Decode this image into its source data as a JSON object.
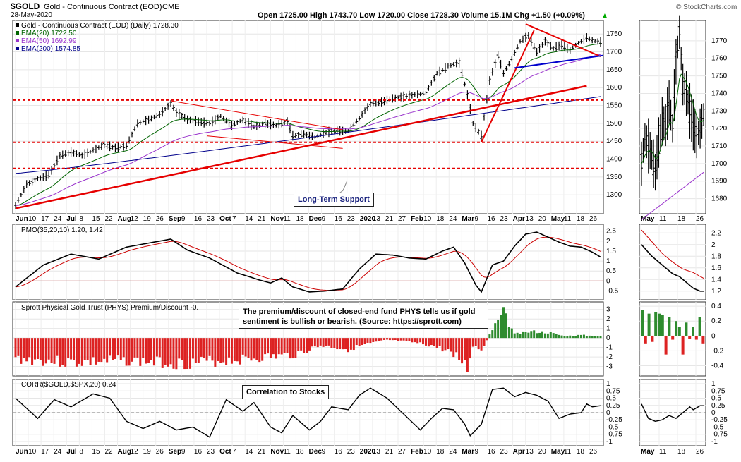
{
  "header": {
    "symbol": "$GOLD",
    "name": "Gold - Continuous Contract (EOD)",
    "exchange": "CME",
    "date": "28-May-2020",
    "ohlc": "Open 1725.00  High 1743.70  Low 1720.00  Close 1728.30  Volume 15.1M  Chg +1.50 (+0.09%)",
    "ohlc_tail": "▲",
    "credit": "© StockCharts.com"
  },
  "colors": {
    "price": "#000000",
    "ema20": "#006400",
    "ema50": "#9932cc",
    "ema200": "#00008b",
    "trend": "#e60000",
    "blue_trend": "#0000cc",
    "bar_positive": "#2e8b2e",
    "bar_negative": "#dd2222",
    "pmo_signal": "#cc0000"
  },
  "annotations": {
    "support": "Long-Term Support",
    "phys_note": "The premium/discount of closed-end fund PHYS tells us if gold sentiment is bullish or bearish. (Source: https://sprott.com)",
    "corr_note": "Correlation to Stocks"
  },
  "x_labels_main": [
    "Jun",
    "10",
    "17",
    "24",
    "Jul",
    "8",
    "15",
    "22",
    "Aug",
    "12",
    "19",
    "26",
    "Sep",
    "9",
    "16",
    "23",
    "Oct",
    "7",
    "14",
    "21",
    "Nov",
    "11",
    "18",
    "Dec",
    "9",
    "16",
    "23",
    "2020",
    "13",
    "21",
    "27",
    "Feb",
    "10",
    "18",
    "24",
    "Mar",
    "9",
    "16",
    "23",
    "Apr",
    "13",
    "20",
    "May",
    "11",
    "18",
    "26"
  ],
  "x_labels_side": [
    "May",
    "11",
    "18",
    "26"
  ],
  "chart_data": [
    {
      "type": "line",
      "name": "price",
      "legend": [
        "Gold - Continuous Contract (EOD) (Daily) 1728.30",
        "EMA(20) 1722.50",
        "EMA(50) 1692.99",
        "EMA(200) 1574.85"
      ],
      "y_ticks": [
        1300,
        1350,
        1400,
        1450,
        1500,
        1550,
        1600,
        1650,
        1700,
        1750
      ],
      "ylim": [
        1255,
        1780
      ],
      "knots": [
        [
          0,
          1270
        ],
        [
          4,
          1330
        ],
        [
          8,
          1345
        ],
        [
          12,
          1355
        ],
        [
          16,
          1410
        ],
        [
          20,
          1420
        ],
        [
          24,
          1410
        ],
        [
          28,
          1425
        ],
        [
          32,
          1440
        ],
        [
          36,
          1432
        ],
        [
          40,
          1438
        ],
        [
          44,
          1500
        ],
        [
          48,
          1510
        ],
        [
          52,
          1525
        ],
        [
          56,
          1555
        ],
        [
          58,
          1530
        ],
        [
          62,
          1510
        ],
        [
          66,
          1505
        ],
        [
          70,
          1500
        ],
        [
          74,
          1520
        ],
        [
          78,
          1495
        ],
        [
          82,
          1510
        ],
        [
          86,
          1490
        ],
        [
          90,
          1500
        ],
        [
          94,
          1495
        ],
        [
          98,
          1505
        ],
        [
          100,
          1465
        ],
        [
          104,
          1470
        ],
        [
          108,
          1462
        ],
        [
          112,
          1475
        ],
        [
          116,
          1480
        ],
        [
          120,
          1478
        ],
        [
          124,
          1515
        ],
        [
          128,
          1555
        ],
        [
          132,
          1560
        ],
        [
          136,
          1570
        ],
        [
          140,
          1575
        ],
        [
          144,
          1580
        ],
        [
          148,
          1585
        ],
        [
          152,
          1640
        ],
        [
          156,
          1660
        ],
        [
          160,
          1670
        ],
        [
          163,
          1580
        ],
        [
          165,
          1500
        ],
        [
          168,
          1465
        ],
        [
          171,
          1620
        ],
        [
          174,
          1690
        ],
        [
          176,
          1640
        ],
        [
          179,
          1680
        ],
        [
          182,
          1730
        ],
        [
          185,
          1745
        ],
        [
          188,
          1700
        ],
        [
          191,
          1730
        ],
        [
          194,
          1710
        ],
        [
          197,
          1720
        ],
        [
          200,
          1705
        ],
        [
          203,
          1725
        ],
        [
          206,
          1740
        ],
        [
          209,
          1730
        ],
        [
          211,
          1728
        ]
      ],
      "ema20_level": 1722.5,
      "ema50_level": 1692.99,
      "ema200_level": 1574.85,
      "support_lines": [
        1565,
        1447,
        1374
      ]
    },
    {
      "type": "line",
      "name": "price_side",
      "y_ticks": [
        1680,
        1690,
        1700,
        1710,
        1720,
        1730,
        1740,
        1750,
        1760,
        1770
      ],
      "ylim": [
        1673,
        1780
      ],
      "knots": [
        [
          0,
          1700
        ],
        [
          2,
          1715
        ],
        [
          4,
          1710
        ],
        [
          6,
          1705
        ],
        [
          8,
          1695
        ],
        [
          10,
          1712
        ],
        [
          12,
          1724
        ],
        [
          14,
          1722
        ],
        [
          16,
          1735
        ],
        [
          18,
          1720
        ],
        [
          20,
          1758
        ],
        [
          22,
          1775
        ],
        [
          24,
          1745
        ],
        [
          26,
          1740
        ],
        [
          28,
          1730
        ],
        [
          30,
          1722
        ],
        [
          32,
          1715
        ],
        [
          34,
          1720
        ],
        [
          36,
          1728
        ]
      ]
    },
    {
      "type": "line",
      "name": "PMO",
      "legend": "PMO(35,20,10) 1.20, 1.42",
      "y_ticks": [
        -0.5,
        0,
        0.5,
        1,
        1.5,
        2,
        2.5
      ],
      "ylim": [
        -0.8,
        2.7
      ],
      "knots": [
        [
          0,
          -0.3
        ],
        [
          10,
          0.8
        ],
        [
          20,
          1.35
        ],
        [
          30,
          1.1
        ],
        [
          40,
          1.7
        ],
        [
          50,
          1.95
        ],
        [
          56,
          2.1
        ],
        [
          62,
          1.55
        ],
        [
          70,
          1.15
        ],
        [
          80,
          0.4
        ],
        [
          88,
          0.05
        ],
        [
          92,
          -0.1
        ],
        [
          96,
          0.15
        ],
        [
          100,
          -0.3
        ],
        [
          106,
          -0.55
        ],
        [
          112,
          -0.5
        ],
        [
          118,
          -0.4
        ],
        [
          124,
          0.6
        ],
        [
          130,
          1.35
        ],
        [
          136,
          1.3
        ],
        [
          142,
          1.15
        ],
        [
          148,
          1.1
        ],
        [
          154,
          1.5
        ],
        [
          158,
          1.7
        ],
        [
          162,
          0.9
        ],
        [
          166,
          -0.2
        ],
        [
          168,
          -0.55
        ],
        [
          172,
          0.8
        ],
        [
          176,
          1.0
        ],
        [
          180,
          1.75
        ],
        [
          184,
          2.35
        ],
        [
          188,
          2.45
        ],
        [
          192,
          2.2
        ],
        [
          196,
          1.95
        ],
        [
          200,
          1.75
        ],
        [
          204,
          1.7
        ],
        [
          208,
          1.45
        ],
        [
          211,
          1.2
        ]
      ],
      "signal_lag": 5
    },
    {
      "type": "line",
      "name": "PMO_side",
      "y_ticks": [
        1.2,
        1.4,
        1.6,
        1.8,
        2.0,
        2.2
      ],
      "ylim": [
        1.1,
        2.3
      ],
      "knots": [
        [
          0,
          2.0
        ],
        [
          6,
          1.8
        ],
        [
          10,
          1.7
        ],
        [
          14,
          1.6
        ],
        [
          18,
          1.5
        ],
        [
          22,
          1.45
        ],
        [
          26,
          1.35
        ],
        [
          30,
          1.25
        ],
        [
          34,
          1.2
        ],
        [
          36,
          1.2
        ]
      ],
      "signal_knots": [
        [
          0,
          2.25
        ],
        [
          6,
          2.05
        ],
        [
          12,
          1.85
        ],
        [
          18,
          1.7
        ],
        [
          24,
          1.58
        ],
        [
          30,
          1.52
        ],
        [
          36,
          1.42
        ]
      ]
    },
    {
      "type": "bar",
      "name": "PHYS Premium/Discount",
      "legend": "Sprott Physical Gold Trust (PHYS) Premium/Discount -0.",
      "y_ticks": [
        -3,
        -2,
        -1,
        0,
        1,
        2,
        3
      ],
      "ylim": [
        -3.7,
        3.5
      ],
      "knots": [
        [
          0,
          -2.2
        ],
        [
          20,
          -2.6
        ],
        [
          40,
          -2.4
        ],
        [
          60,
          -2.7
        ],
        [
          80,
          -2.3
        ],
        [
          100,
          -1.8
        ],
        [
          110,
          -0.8
        ],
        [
          120,
          -1.2
        ],
        [
          126,
          -0.7
        ],
        [
          134,
          -0.2
        ],
        [
          142,
          -0.4
        ],
        [
          150,
          -0.8
        ],
        [
          158,
          -1.6
        ],
        [
          163,
          -3.2
        ],
        [
          165,
          -0.8
        ],
        [
          168,
          -1.3
        ],
        [
          172,
          0.9
        ],
        [
          176,
          2.7
        ],
        [
          180,
          0.4
        ],
        [
          186,
          0.7
        ],
        [
          192,
          0.6
        ],
        [
          198,
          0.2
        ],
        [
          204,
          0.3
        ],
        [
          211,
          0.15
        ]
      ]
    },
    {
      "type": "bar",
      "name": "PHYS_side",
      "y_ticks": [
        -0.4,
        -0.2,
        0,
        0.2,
        0.4
      ],
      "ylim": [
        -0.5,
        0.42
      ],
      "values": [
        0.35,
        -0.1,
        0.3,
        -0.08,
        0.32,
        0.3,
        0.28,
        -0.25,
        0.25,
        -0.05,
        0.2,
        0.12,
        -0.25,
        0.18,
        -0.04,
        0.12,
        -0.05,
        0.25,
        -0.1
      ]
    },
    {
      "type": "line",
      "name": "CORR",
      "legend": "CORR($GOLD,$SPX,20) 0.24",
      "y_ticks": [
        -1,
        -0.75,
        -0.5,
        -0.25,
        0,
        0.25,
        0.5,
        0.75,
        1
      ],
      "ylim": [
        -1.05,
        1.05
      ],
      "knots": [
        [
          0,
          0.5
        ],
        [
          8,
          -0.2
        ],
        [
          14,
          0.45
        ],
        [
          20,
          0.2
        ],
        [
          28,
          0.65
        ],
        [
          34,
          0.5
        ],
        [
          40,
          -0.3
        ],
        [
          46,
          -0.55
        ],
        [
          52,
          -0.3
        ],
        [
          58,
          -0.6
        ],
        [
          64,
          -0.5
        ],
        [
          70,
          -0.85
        ],
        [
          76,
          0.45
        ],
        [
          82,
          0.05
        ],
        [
          86,
          0.35
        ],
        [
          92,
          -0.5
        ],
        [
          96,
          -0.7
        ],
        [
          100,
          -0.1
        ],
        [
          106,
          -0.6
        ],
        [
          110,
          -0.3
        ],
        [
          114,
          0.2
        ],
        [
          120,
          0.1
        ],
        [
          124,
          0.6
        ],
        [
          128,
          0.85
        ],
        [
          134,
          0.5
        ],
        [
          140,
          -0.05
        ],
        [
          146,
          -0.6
        ],
        [
          150,
          -0.2
        ],
        [
          154,
          0.15
        ],
        [
          158,
          0.1
        ],
        [
          162,
          -0.4
        ],
        [
          164,
          -0.8
        ],
        [
          168,
          -0.4
        ],
        [
          172,
          0.8
        ],
        [
          176,
          0.85
        ],
        [
          180,
          0.55
        ],
        [
          184,
          0.7
        ],
        [
          188,
          0.6
        ],
        [
          192,
          0.4
        ],
        [
          196,
          -0.2
        ],
        [
          200,
          -0.05
        ],
        [
          204,
          0.0
        ],
        [
          206,
          0.3
        ],
        [
          208,
          0.2
        ],
        [
          211,
          0.24
        ]
      ]
    },
    {
      "type": "line",
      "name": "CORR_side",
      "y_ticks": [
        -1,
        -0.75,
        -0.5,
        -0.25,
        0,
        0.25,
        0.5,
        0.75,
        1
      ],
      "ylim": [
        -1.05,
        1.05
      ],
      "knots": [
        [
          0,
          0.3
        ],
        [
          4,
          -0.2
        ],
        [
          8,
          -0.3
        ],
        [
          12,
          -0.25
        ],
        [
          16,
          -0.1
        ],
        [
          20,
          -0.2
        ],
        [
          24,
          0.0
        ],
        [
          28,
          0.2
        ],
        [
          30,
          0.1
        ],
        [
          34,
          0.24
        ],
        [
          36,
          0.24
        ]
      ]
    }
  ]
}
